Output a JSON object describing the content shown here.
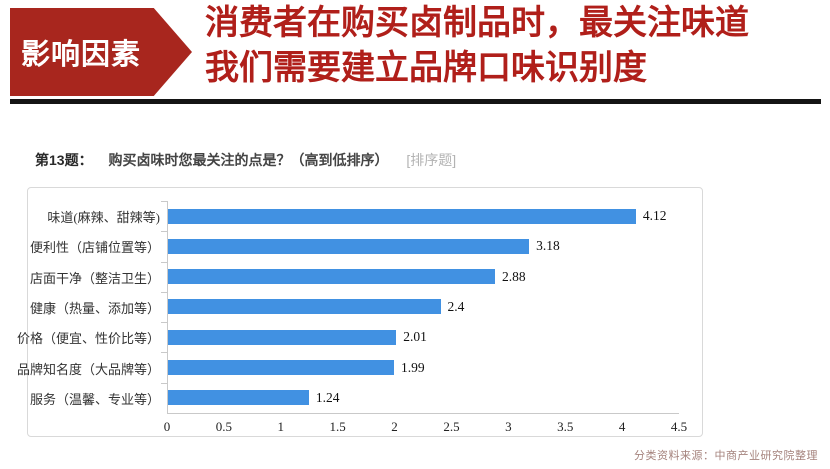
{
  "header": {
    "badge": "影响因素",
    "title_line1": "消费者在购买卤制品时，最关注味道",
    "title_line2": "我们需要建立品牌口味识别度"
  },
  "question": {
    "number": "第13题：",
    "text": "购买卤味时您最关注的点是？（高到低排序）",
    "tag": "[排序题]"
  },
  "chart_data": {
    "type": "bar",
    "orientation": "horizontal",
    "title": "",
    "categories": [
      "味道(麻辣、甜辣等)",
      "便利性（店铺位置等）",
      "店面干净（整洁卫生）",
      "健康（热量、添加等）",
      "价格（便宜、性价比等）",
      "品牌知名度（大品牌等）",
      "服务（温馨、专业等）"
    ],
    "values": [
      4.12,
      3.18,
      2.88,
      2.4,
      2.01,
      1.99,
      1.24
    ],
    "value_labels": [
      "4.12",
      "3.18",
      "2.88",
      "2.4",
      "2.01",
      "1.99",
      "1.24"
    ],
    "xlabel": "",
    "ylabel": "",
    "xlim": [
      0,
      4.5
    ],
    "x_ticks": [
      "0",
      "0.5",
      "1",
      "1.5",
      "2",
      "2.5",
      "3",
      "3.5",
      "4",
      "4.5"
    ],
    "grid": false,
    "legend_position": "none"
  },
  "footer": {
    "source": "分类资料来源：中商产业研究院整理"
  },
  "colors": {
    "accent_red": "#a8261e",
    "title_red": "#b01f1a",
    "bar_blue": "#4191e2"
  }
}
